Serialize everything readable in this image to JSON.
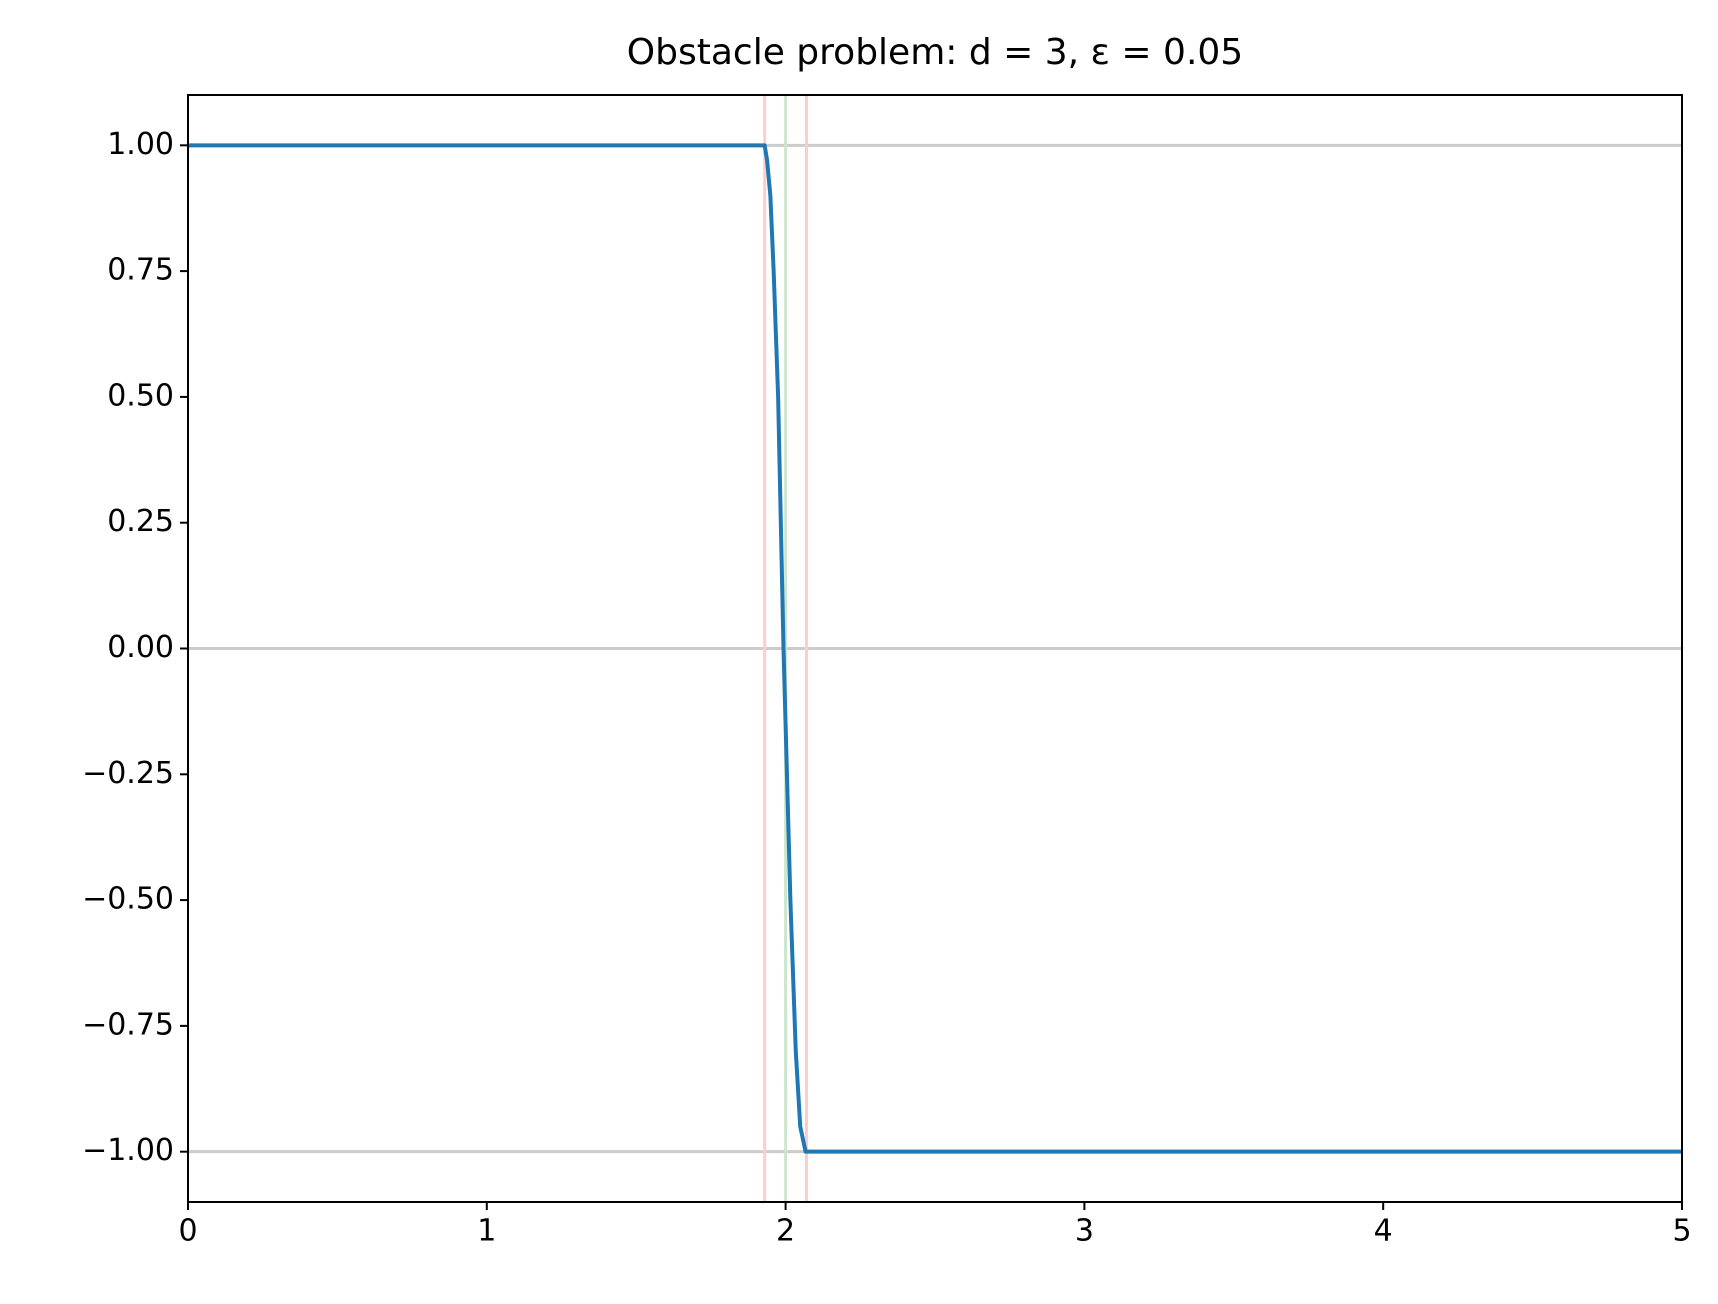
{
  "chart_data": {
    "type": "line",
    "title": "Obstacle problem: d = 3, ε = 0.05",
    "x": [
      0,
      1,
      1.93,
      1.938,
      1.949,
      1.96,
      1.975,
      1.993,
      2.016,
      2.034,
      2.049,
      2.067,
      5
    ],
    "series": [
      {
        "color": "#1f77b4",
        "values": [
          1,
          1,
          1,
          0.97,
          0.9,
          0.75,
          0.5,
          0,
          -0.5,
          -0.8,
          -0.95,
          -1,
          -1
        ]
      }
    ],
    "hlines": [
      {
        "y": 1,
        "color": "#cccccc"
      },
      {
        "y": 0,
        "color": "#cccccc"
      },
      {
        "y": -1,
        "color": "#cccccc"
      }
    ],
    "vlines": [
      {
        "x": 1.93,
        "color": "#ffcccc"
      },
      {
        "x": 2,
        "color": "#cce5cc"
      },
      {
        "x": 2.07,
        "color": "#ffcccc"
      }
    ],
    "xlim": [
      0,
      5
    ],
    "xticks": [
      0,
      1,
      2,
      3,
      4,
      5
    ],
    "ylim": [
      -1.1,
      1.1
    ],
    "yticks": [
      {
        "value": -1,
        "label": "−1.00"
      },
      {
        "value": -0.75,
        "label": "−0.75"
      },
      {
        "value": -0.5,
        "label": "−0.50"
      },
      {
        "value": -0.25,
        "label": "−0.25"
      },
      {
        "value": 0,
        "label": "0.00"
      },
      {
        "value": 0.25,
        "label": "0.25"
      },
      {
        "value": 0.5,
        "label": "0.50"
      },
      {
        "value": 0.75,
        "label": "0.75"
      },
      {
        "value": 1,
        "label": "1.00"
      }
    ]
  }
}
